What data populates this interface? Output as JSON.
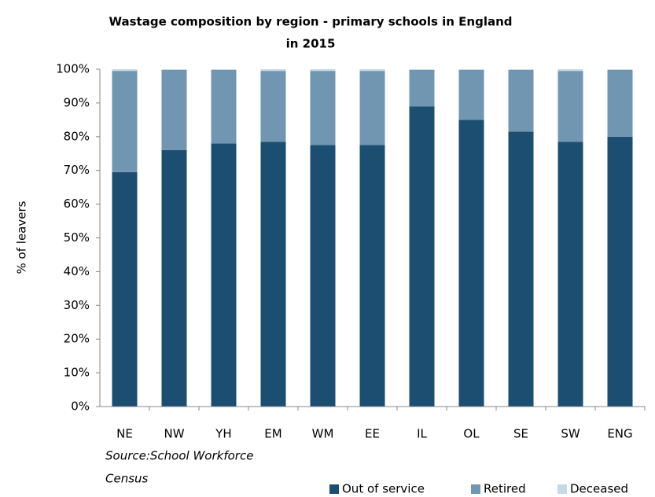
{
  "chart_data": {
    "type": "stacked_bar",
    "title": [
      "Wastage composition by region - primary schools in England",
      "in 2015"
    ],
    "y_label": "% of leavers",
    "annotation": [
      "Source:School  Workforce",
      "Census"
    ],
    "categories": [
      "NE",
      "NW",
      "YH",
      "EM",
      "WM",
      "EE",
      "IL",
      "OL",
      "SE",
      "SW",
      "ENG"
    ],
    "series": [
      {
        "name": "Out of service",
        "color": "#1b4e70",
        "values": [
          69.5,
          76,
          78,
          78.5,
          77.5,
          77.5,
          89,
          85,
          81.5,
          78.5,
          80
        ]
      },
      {
        "name": "Retired",
        "color": "#7196b1",
        "values": [
          30,
          23.8,
          21.8,
          21,
          22,
          22,
          10.8,
          14.8,
          18.3,
          21,
          19.8
        ]
      },
      {
        "name": "Deceased",
        "color": "#c5d9e6",
        "values": [
          0.5,
          0.2,
          0.2,
          0.5,
          0.5,
          0.5,
          0.2,
          0.2,
          0.2,
          0.5,
          0.2
        ]
      }
    ],
    "ylim": [
      0,
      100
    ],
    "yticks": [
      {
        "value": 0,
        "label": "0%"
      },
      {
        "value": 10,
        "label": "10%"
      },
      {
        "value": 20,
        "label": "20%"
      },
      {
        "value": 30,
        "label": "30%"
      },
      {
        "value": 40,
        "label": "40%"
      },
      {
        "value": 50,
        "label": "50%"
      },
      {
        "value": 60,
        "label": "60%"
      },
      {
        "value": 70,
        "label": "70%"
      },
      {
        "value": 80,
        "label": "80%"
      },
      {
        "value": 90,
        "label": "90%"
      },
      {
        "value": 100,
        "label": "100%"
      }
    ],
    "grid": false,
    "legend": "bottom-right"
  }
}
